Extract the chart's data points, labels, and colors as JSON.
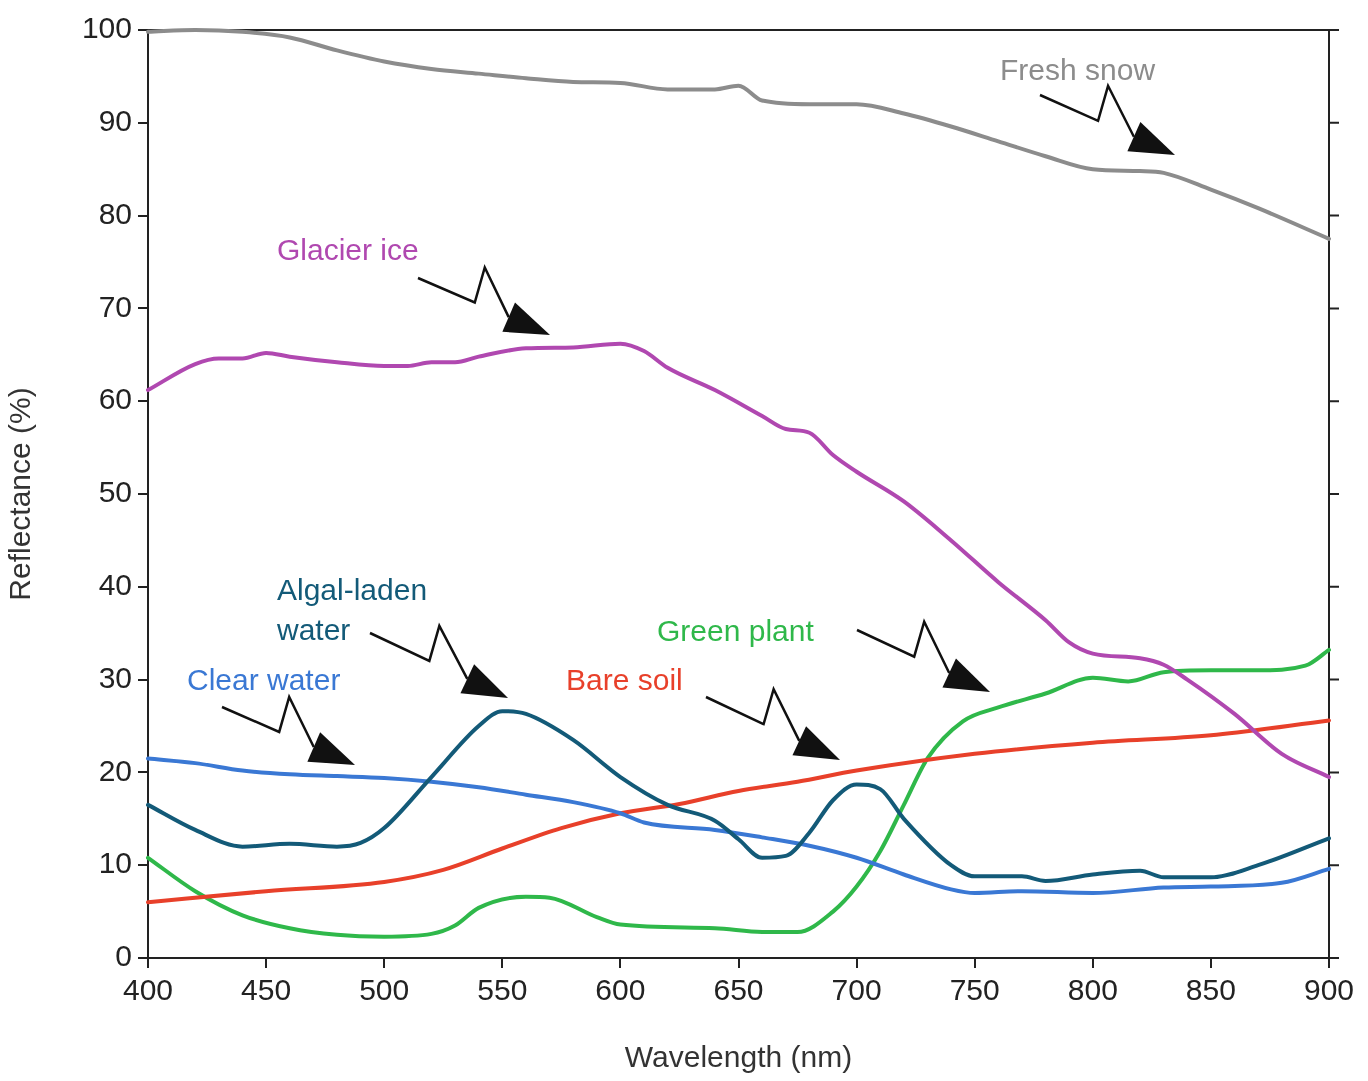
{
  "chart_data": {
    "type": "line",
    "xlabel": "Wavelength (nm)",
    "ylabel": "Reflectance (%)",
    "xlim": [
      400,
      900
    ],
    "ylim": [
      0,
      100
    ],
    "xticks": [
      400,
      450,
      500,
      550,
      600,
      650,
      700,
      750,
      800,
      850,
      900
    ],
    "yticks": [
      0,
      10,
      20,
      30,
      40,
      50,
      60,
      70,
      80,
      90,
      100
    ],
    "grid": false,
    "legend": false,
    "marker": "none",
    "line_style": "solid",
    "series": [
      {
        "name": "Fresh snow",
        "color": "#8c8c8c",
        "x": [
          400,
          420,
          440,
          460,
          480,
          500,
          520,
          540,
          560,
          580,
          600,
          620,
          640,
          650,
          660,
          680,
          700,
          720,
          740,
          760,
          780,
          800,
          820,
          830,
          850,
          870,
          900
        ],
        "values": [
          99.8,
          100,
          99.8,
          99.2,
          97.8,
          96.6,
          95.8,
          95.3,
          94.8,
          94.4,
          94.3,
          93.6,
          93.6,
          94,
          92.4,
          92,
          92,
          91,
          89.6,
          88,
          86.4,
          85,
          84.8,
          84.6,
          82.8,
          80.8,
          77.5
        ]
      },
      {
        "name": "Glacier ice",
        "color": "#b048b0",
        "x": [
          400,
          420,
          430,
          440,
          450,
          460,
          480,
          500,
          510,
          520,
          530,
          540,
          560,
          580,
          600,
          610,
          620,
          640,
          660,
          670,
          680,
          690,
          700,
          720,
          740,
          760,
          780,
          790,
          800,
          820,
          830,
          840,
          860,
          880,
          900
        ],
        "values": [
          61.2,
          64,
          64.6,
          64.6,
          65.2,
          64.8,
          64.2,
          63.8,
          63.8,
          64.2,
          64.2,
          64.8,
          65.7,
          65.8,
          66.2,
          65.4,
          63.6,
          61.2,
          58.4,
          57,
          56.6,
          54.2,
          52.4,
          49.2,
          45,
          40.5,
          36.4,
          34,
          32.8,
          32.3,
          31.6,
          30,
          26.3,
          22,
          19.5
        ]
      },
      {
        "name": "Algal-laden water",
        "color": "#135a78",
        "x": [
          400,
          420,
          440,
          460,
          480,
          490,
          500,
          520,
          540,
          550,
          560,
          580,
          600,
          620,
          640,
          650,
          660,
          670,
          680,
          690,
          700,
          710,
          720,
          740,
          750,
          770,
          780,
          800,
          820,
          830,
          850,
          870,
          900
        ],
        "values": [
          16.5,
          13.8,
          12,
          12.3,
          12,
          12.4,
          14,
          19.5,
          25,
          26.6,
          26.3,
          23.5,
          19.5,
          16.5,
          14.8,
          12.8,
          10.8,
          11,
          13.5,
          17,
          18.7,
          18.2,
          15,
          10,
          8.8,
          8.8,
          8.3,
          9,
          9.4,
          8.7,
          8.7,
          10,
          12.9
        ]
      },
      {
        "name": "Clear water",
        "color": "#3a78d4",
        "x": [
          400,
          420,
          440,
          460,
          480,
          500,
          520,
          540,
          560,
          580,
          600,
          610,
          640,
          660,
          680,
          700,
          720,
          740,
          750,
          770,
          800,
          830,
          850,
          880,
          900
        ],
        "values": [
          21.5,
          21,
          20.2,
          19.8,
          19.6,
          19.4,
          19,
          18.4,
          17.6,
          16.8,
          15.6,
          14.6,
          13.8,
          13,
          12.1,
          10.8,
          9,
          7.4,
          7,
          7.2,
          7,
          7.6,
          7.7,
          8.1,
          9.6
        ]
      },
      {
        "name": "Bare soil",
        "color": "#e8402a",
        "x": [
          400,
          450,
          500,
          525,
          550,
          575,
          600,
          625,
          650,
          675,
          700,
          750,
          800,
          850,
          900
        ],
        "values": [
          6,
          7.2,
          8.2,
          9.5,
          11.8,
          14,
          15.6,
          16.6,
          18,
          19,
          20.2,
          22,
          23.2,
          24,
          25.6
        ]
      },
      {
        "name": "Green plant",
        "color": "#2fb84a",
        "x": [
          400,
          420,
          440,
          460,
          480,
          500,
          520,
          530,
          540,
          560,
          570,
          590,
          600,
          640,
          660,
          675,
          690,
          700,
          710,
          720,
          730,
          745,
          760,
          780,
          800,
          815,
          830,
          850,
          870,
          890,
          900
        ],
        "values": [
          10.8,
          7.2,
          4.6,
          3.2,
          2.5,
          2.3,
          2.6,
          3.5,
          5.4,
          6.6,
          6.5,
          4.4,
          3.6,
          3.2,
          2.8,
          2.8,
          5,
          7.7,
          11.5,
          16.5,
          21.5,
          25.5,
          27,
          28.5,
          30.2,
          29.8,
          30.8,
          31,
          31,
          31.5,
          33.2
        ]
      }
    ]
  }
}
